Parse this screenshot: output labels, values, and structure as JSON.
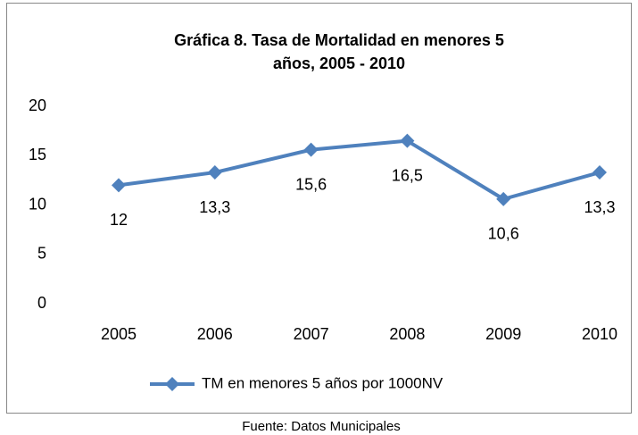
{
  "chart_data": {
    "type": "line",
    "title": [
      "Gráfica 8.  Tasa de Mortalidad en menores 5",
      "años, 2005 - 2010"
    ],
    "categories": [
      "2005",
      "2006",
      "2007",
      "2008",
      "2009",
      "2010"
    ],
    "series": [
      {
        "name": "TM en menores 5 años por 1000NV",
        "color": "#4f81bd",
        "values": [
          12,
          13.3,
          15.6,
          16.5,
          10.6,
          13.3
        ],
        "value_labels": [
          "12",
          "13,3",
          "15,6",
          "16,5",
          "10,6",
          "13,3"
        ]
      }
    ],
    "ylim": [
      0,
      20
    ],
    "yticks": [
      0,
      5,
      10,
      15,
      20
    ],
    "grid": false,
    "legend": "bottom",
    "source": "Fuente: Datos Municipales"
  }
}
